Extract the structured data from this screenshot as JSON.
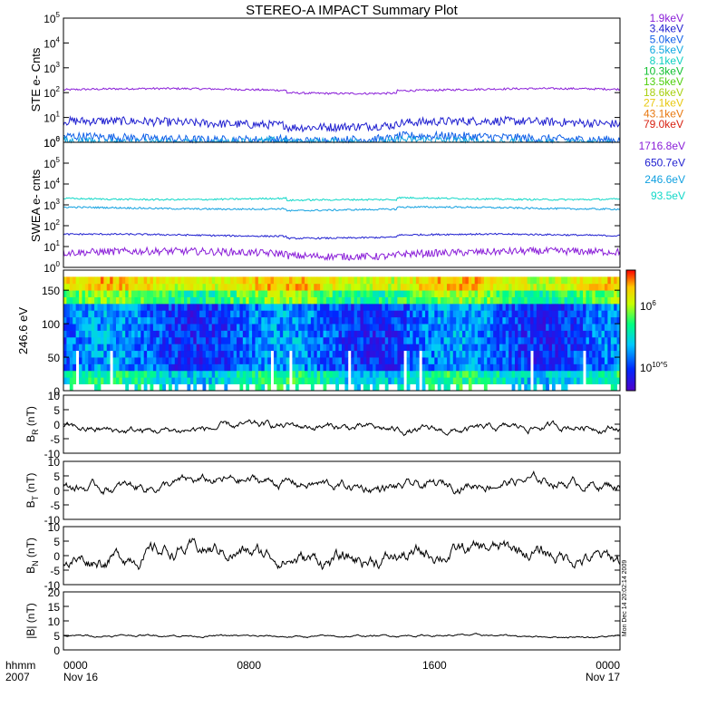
{
  "title": "STEREO-A IMPACT Summary Plot",
  "time_axis": {
    "corner_label_1": "hhmm",
    "corner_label_2": "2007",
    "tick_times": [
      "0000",
      "0800",
      "1600",
      "0000"
    ],
    "tick_dates": [
      "Nov 16",
      "",
      "",
      "Nov 17"
    ],
    "hours_span": 24
  },
  "side_stamp": "Mon Dec 14 20:02:14 2009",
  "chart_data": [
    {
      "type": "line",
      "panel": "ste",
      "ylabel": "STE e- Cnts",
      "yscale": "log",
      "ylim_log10": [
        0,
        5
      ],
      "ytick_exponents": [
        0,
        1,
        2,
        3,
        4,
        5
      ],
      "legend_position": "right",
      "series": [
        {
          "name": "1.9keV",
          "color": "#8a1ed8",
          "level": 130
        },
        {
          "name": "3.4keV",
          "color": "#2020d0",
          "level": 6
        },
        {
          "name": "5.0keV",
          "color": "#1060e8",
          "level": 1.5
        },
        {
          "name": "6.5keV",
          "color": "#10a8e0",
          "level": 1.1
        },
        {
          "name": "8.1keV",
          "color": "#10d0c0",
          "level": null
        },
        {
          "name": "10.3keV",
          "color": "#10c030",
          "level": null
        },
        {
          "name": "13.5keV",
          "color": "#50d010",
          "level": null
        },
        {
          "name": "18.6keV",
          "color": "#a8d010",
          "level": null
        },
        {
          "name": "27.1keV",
          "color": "#e8c810",
          "level": null
        },
        {
          "name": "43.1keV",
          "color": "#e87810",
          "level": null
        },
        {
          "name": "79.0keV",
          "color": "#d82010",
          "level": null
        }
      ]
    },
    {
      "type": "line",
      "panel": "swea",
      "ylabel": "SWEA e- cnts",
      "yscale": "log",
      "ylim_log10": [
        0,
        6
      ],
      "ytick_exponents": [
        0,
        1,
        2,
        3,
        4,
        5,
        6
      ],
      "legend_position": "right",
      "series": [
        {
          "name": "1716.8eV",
          "color": "#8a1ed8",
          "level": 5
        },
        {
          "name": "650.7eV",
          "color": "#2020d0",
          "level": 35
        },
        {
          "name": "246.6eV",
          "color": "#10a0e0",
          "level": 700
        },
        {
          "name": "93.5eV",
          "color": "#10d8c8",
          "level": 2000
        }
      ]
    },
    {
      "type": "heatmap",
      "panel": "pad",
      "ylabel": "246.6 eV",
      "ylim": [
        0,
        180
      ],
      "yticks": [
        0,
        50,
        100,
        150
      ],
      "colorbar_labels": [
        "10^5",
        "10^6"
      ]
    },
    {
      "type": "line",
      "panel": "br",
      "ylabel_main": "B",
      "ylabel_sub": "R",
      "ylabel_unit": " (nT)",
      "ylim": [
        -10,
        10
      ],
      "yticks": [
        -10,
        -5,
        0,
        5,
        10
      ],
      "mean": -1.5,
      "amplitude": 1.5
    },
    {
      "type": "line",
      "panel": "bt",
      "ylabel_main": "B",
      "ylabel_sub": "T",
      "ylabel_unit": " (nT)",
      "ylim": [
        -10,
        10
      ],
      "yticks": [
        -10,
        -5,
        0,
        5,
        10
      ],
      "mean": 2,
      "amplitude": 2
    },
    {
      "type": "line",
      "panel": "bn",
      "ylabel_main": "B",
      "ylabel_sub": "N",
      "ylabel_unit": " (nT)",
      "ylim": [
        -10,
        10
      ],
      "yticks": [
        -10,
        -5,
        0,
        5,
        10
      ],
      "mean": 0,
      "amplitude": 3
    },
    {
      "type": "line",
      "panel": "bmag",
      "ylabel_main": "|B| (nT)",
      "ylim": [
        0,
        20
      ],
      "yticks": [
        0,
        5,
        10,
        15,
        20
      ],
      "mean": 4.8,
      "amplitude": 0.4
    }
  ]
}
